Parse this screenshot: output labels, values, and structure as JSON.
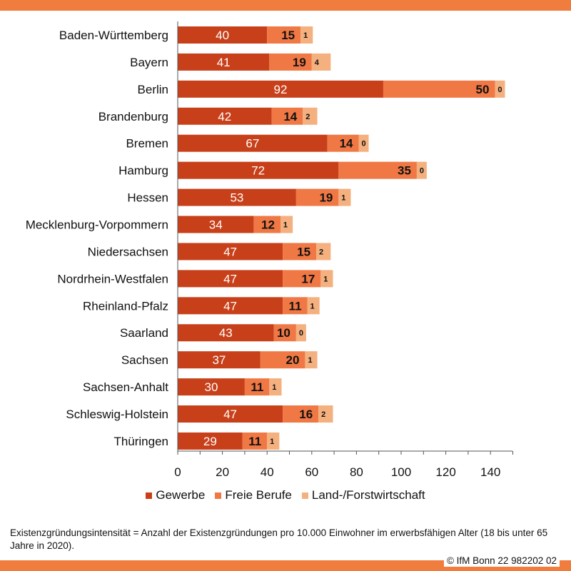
{
  "colors": {
    "frame": "#f07d3d",
    "gewerbe": "#c8401a",
    "freie": "#f07844",
    "land": "#f4b07e",
    "axis": "#555555",
    "text": "#111111"
  },
  "chart_data": {
    "type": "bar",
    "orientation": "horizontal",
    "stacked": true,
    "categories": [
      "Baden-Württemberg",
      "Bayern",
      "Berlin",
      "Brandenburg",
      "Bremen",
      "Hamburg",
      "Hessen",
      "Mecklenburg-Vorpommern",
      "Niedersachsen",
      "Nordrhein-Westfalen",
      "Rheinland-Pfalz",
      "Saarland",
      "Sachsen",
      "Sachsen-Anhalt",
      "Schleswig-Holstein",
      "Thüringen"
    ],
    "series": [
      {
        "name": "Gewerbe",
        "values": [
          40,
          41,
          92,
          42,
          67,
          72,
          53,
          34,
          47,
          47,
          47,
          43,
          37,
          30,
          47,
          29
        ]
      },
      {
        "name": "Freie Berufe",
        "values": [
          15,
          19,
          50,
          14,
          14,
          35,
          19,
          12,
          15,
          17,
          11,
          10,
          20,
          11,
          16,
          11
        ]
      },
      {
        "name": "Land-/Forstwirtschaft",
        "values": [
          1,
          4,
          0,
          2,
          0,
          0,
          1,
          1,
          2,
          1,
          1,
          0,
          1,
          1,
          2,
          1
        ]
      }
    ],
    "xlim": [
      0,
      150
    ],
    "xticks": [
      0,
      20,
      40,
      60,
      80,
      100,
      120,
      140
    ],
    "grid": false,
    "legend_position": "bottom"
  },
  "legend": [
    "Gewerbe",
    "Freie Berufe",
    "Land-/Forstwirtschaft"
  ],
  "footnote": "Existenzgründungsintensität = Anzahl der Existenzgründungen pro 10.000 Einwohner im erwerbsfähigen  Alter (18 bis unter 65 Jahre in 2020).",
  "copyright": "© IfM  Bonn 22 982202  02"
}
